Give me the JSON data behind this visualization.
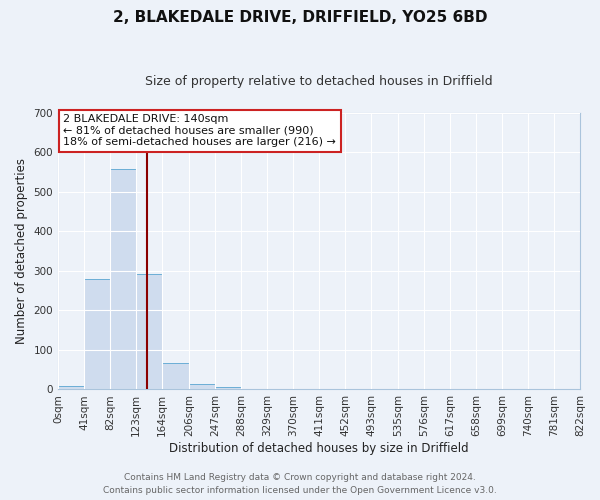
{
  "title": "2, BLAKEDALE DRIVE, DRIFFIELD, YO25 6BD",
  "subtitle": "Size of property relative to detached houses in Driffield",
  "xlabel": "Distribution of detached houses by size in Driffield",
  "ylabel": "Number of detached properties",
  "bin_edges": [
    0,
    41,
    82,
    123,
    164,
    206,
    247,
    288,
    329,
    370,
    411,
    452,
    493,
    535,
    576,
    617,
    658,
    699,
    740,
    781,
    822
  ],
  "bin_labels": [
    "0sqm",
    "41sqm",
    "82sqm",
    "123sqm",
    "164sqm",
    "206sqm",
    "247sqm",
    "288sqm",
    "329sqm",
    "370sqm",
    "411sqm",
    "452sqm",
    "493sqm",
    "535sqm",
    "576sqm",
    "617sqm",
    "658sqm",
    "699sqm",
    "740sqm",
    "781sqm",
    "822sqm"
  ],
  "counts": [
    8,
    280,
    558,
    292,
    68,
    13,
    5,
    0,
    0,
    0,
    0,
    0,
    0,
    0,
    0,
    0,
    0,
    0,
    0,
    0
  ],
  "bar_color": "#cfdcee",
  "bar_edge_color": "#6baed6",
  "vertical_line_x": 140,
  "vertical_line_color": "#8b0000",
  "ylim": [
    0,
    700
  ],
  "yticks": [
    0,
    100,
    200,
    300,
    400,
    500,
    600,
    700
  ],
  "annotation_line1": "2 BLAKEDALE DRIVE: 140sqm",
  "annotation_line2": "← 81% of detached houses are smaller (990)",
  "annotation_line3": "18% of semi-detached houses are larger (216) →",
  "footer1": "Contains HM Land Registry data © Crown copyright and database right 2024.",
  "footer2": "Contains public sector information licensed under the Open Government Licence v3.0.",
  "background_color": "#edf2f9",
  "grid_color": "#ffffff",
  "title_fontsize": 11,
  "subtitle_fontsize": 9,
  "axis_label_fontsize": 8.5,
  "tick_fontsize": 7.5,
  "annotation_fontsize": 8,
  "footer_fontsize": 6.5
}
